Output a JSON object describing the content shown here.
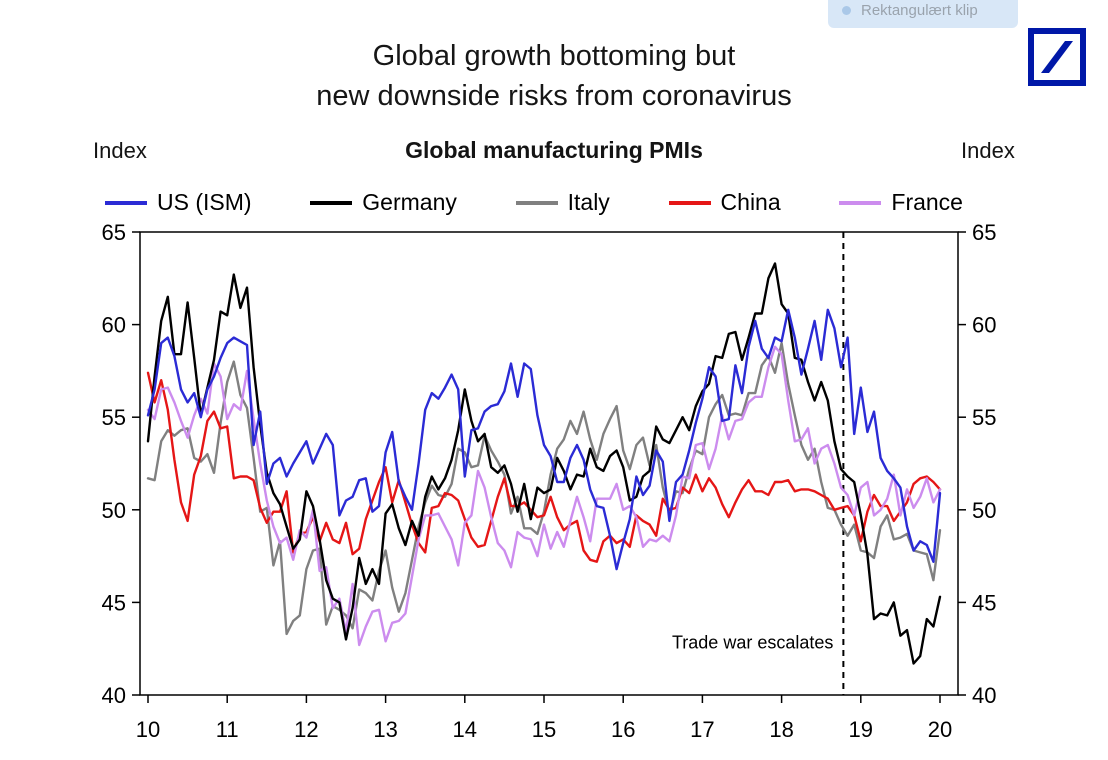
{
  "overlay": {
    "snip_label": "Rektangulært klip"
  },
  "logo": {
    "name": "deutsche-bank",
    "color": "#0018a8"
  },
  "title": {
    "line1": "Global growth bottoming but",
    "line2": "new downside risks from coronavirus"
  },
  "axis_units": {
    "left": "Index",
    "right": "Index"
  },
  "chart_data": {
    "type": "line",
    "title": "Global manufacturing PMIs",
    "xlabel": "",
    "ylabel": "Index",
    "start_year": 2010,
    "frequency": "monthly",
    "grid": false,
    "legend_position": "top",
    "xlim": [
      9.9,
      20.23
    ],
    "ylim": [
      40,
      65
    ],
    "xticks": [
      "10",
      "11",
      "12",
      "13",
      "14",
      "15",
      "16",
      "17",
      "18",
      "19",
      "20"
    ],
    "yticks": [
      40,
      45,
      50,
      55,
      60,
      65
    ],
    "series": [
      {
        "name": "US (ISM)",
        "color": "#2b2bd5",
        "values": [
          55.1,
          56.5,
          59.0,
          59.3,
          58.3,
          56.5,
          55.8,
          56.3,
          55.0,
          56.5,
          57.2,
          58.2,
          59.0,
          59.3,
          59.1,
          58.9,
          53.5,
          55.3,
          51.4,
          52.5,
          52.8,
          51.8,
          52.5,
          53.1,
          53.7,
          52.5,
          53.3,
          54.1,
          53.5,
          49.7,
          50.5,
          50.7,
          51.6,
          51.7,
          49.9,
          50.2,
          53.1,
          54.2,
          51.5,
          50.7,
          50.0,
          52.5,
          55.4,
          56.3,
          56.0,
          56.6,
          57.3,
          56.5,
          51.8,
          54.3,
          54.4,
          55.3,
          55.6,
          55.7,
          56.4,
          57.9,
          56.1,
          57.9,
          57.6,
          55.1,
          53.5,
          52.9,
          51.5,
          51.5,
          52.8,
          53.5,
          52.7,
          51.1,
          50.2,
          50.1,
          48.6,
          46.8,
          48.2,
          49.5,
          51.8,
          50.8,
          51.3,
          53.2,
          52.6,
          49.4,
          51.5,
          51.9,
          53.2,
          54.7,
          56.0,
          57.7,
          57.2,
          54.8,
          54.9,
          57.8,
          56.3,
          58.8,
          60.2,
          58.7,
          58.2,
          59.3,
          59.1,
          60.8,
          59.3,
          57.3,
          58.7,
          60.2,
          58.1,
          60.8,
          59.8,
          57.7,
          59.3,
          54.1,
          56.6,
          54.2,
          55.3,
          52.8,
          52.1,
          51.7,
          51.2,
          49.1,
          47.8,
          48.3,
          48.1,
          47.2,
          50.9
        ]
      },
      {
        "name": "Germany",
        "color": "#000000",
        "values": [
          53.7,
          57.2,
          60.2,
          61.5,
          58.4,
          58.4,
          61.2,
          58.2,
          55.1,
          56.6,
          58.1,
          60.7,
          60.5,
          62.7,
          60.9,
          62.0,
          57.7,
          54.6,
          52.0,
          50.9,
          50.3,
          49.1,
          47.9,
          48.4,
          51.0,
          50.2,
          48.4,
          46.2,
          45.2,
          45.0,
          43.0,
          44.7,
          47.4,
          46.0,
          46.8,
          46.0,
          49.8,
          50.3,
          49.0,
          48.1,
          49.4,
          48.6,
          50.7,
          51.8,
          51.1,
          51.7,
          52.7,
          54.3,
          56.5,
          54.8,
          53.7,
          54.1,
          52.3,
          52.0,
          52.4,
          51.4,
          49.9,
          51.4,
          49.5,
          51.2,
          50.9,
          51.1,
          52.8,
          52.1,
          51.1,
          51.9,
          51.8,
          53.3,
          52.3,
          52.1,
          52.9,
          53.2,
          52.3,
          50.5,
          50.7,
          51.8,
          52.1,
          54.5,
          53.8,
          53.6,
          54.3,
          55.0,
          54.3,
          55.6,
          56.4,
          56.8,
          58.3,
          58.2,
          59.5,
          59.6,
          58.1,
          59.3,
          60.6,
          60.6,
          62.5,
          63.3,
          61.1,
          60.6,
          58.2,
          58.1,
          56.9,
          55.9,
          56.9,
          55.9,
          53.7,
          52.2,
          51.8,
          51.5,
          49.7,
          47.6,
          44.1,
          44.4,
          44.3,
          45.0,
          43.2,
          43.5,
          41.7,
          42.1,
          44.1,
          43.7,
          45.3
        ]
      },
      {
        "name": "Italy",
        "color": "#808080",
        "values": [
          51.7,
          51.6,
          53.7,
          54.3,
          54.0,
          54.3,
          54.4,
          52.8,
          52.6,
          53.0,
          52.0,
          54.7,
          56.9,
          58.0,
          56.2,
          55.5,
          52.8,
          49.9,
          50.1,
          47.0,
          48.3,
          43.3,
          44.0,
          44.3,
          46.8,
          47.8,
          47.9,
          43.8,
          44.8,
          44.6,
          44.3,
          43.6,
          45.7,
          45.5,
          45.1,
          46.7,
          47.8,
          45.8,
          44.5,
          45.5,
          47.3,
          49.1,
          50.4,
          51.3,
          50.8,
          50.7,
          51.4,
          53.3,
          53.1,
          52.3,
          52.4,
          54.0,
          53.2,
          52.6,
          51.9,
          49.8,
          50.7,
          49.0,
          49.0,
          48.7,
          49.9,
          51.9,
          53.3,
          53.8,
          54.8,
          54.1,
          55.3,
          53.8,
          52.7,
          54.1,
          54.9,
          55.6,
          53.2,
          52.2,
          53.5,
          53.9,
          52.4,
          53.5,
          51.2,
          49.8,
          51.0,
          50.9,
          52.2,
          53.2,
          53.0,
          55.0,
          55.7,
          56.2,
          55.1,
          55.2,
          55.1,
          56.3,
          56.3,
          57.8,
          58.3,
          57.4,
          59.0,
          56.8,
          55.1,
          53.5,
          52.7,
          53.3,
          51.5,
          50.1,
          50.0,
          49.2,
          48.6,
          49.2,
          47.8,
          47.7,
          47.4,
          49.1,
          49.7,
          48.4,
          48.5,
          48.7,
          47.8,
          47.7,
          47.6,
          46.2,
          48.9
        ]
      },
      {
        "name": "China",
        "color": "#e51616",
        "values": [
          57.4,
          55.8,
          57.0,
          55.4,
          52.7,
          50.4,
          49.4,
          51.9,
          52.9,
          54.8,
          55.3,
          54.4,
          54.5,
          51.7,
          51.8,
          51.8,
          51.6,
          50.1,
          49.3,
          49.9,
          49.9,
          51.0,
          47.7,
          48.7,
          48.8,
          49.6,
          48.3,
          49.3,
          48.4,
          48.2,
          49.3,
          47.6,
          47.9,
          49.5,
          50.5,
          51.5,
          52.3,
          50.4,
          51.6,
          50.4,
          49.2,
          48.2,
          47.7,
          50.1,
          50.2,
          50.9,
          50.8,
          50.5,
          49.5,
          48.5,
          48.0,
          48.1,
          49.4,
          50.7,
          51.7,
          50.2,
          50.2,
          50.4,
          50.0,
          49.6,
          49.7,
          50.7,
          49.6,
          48.9,
          49.2,
          49.4,
          47.8,
          47.3,
          47.2,
          48.3,
          48.6,
          48.2,
          48.4,
          48.0,
          49.7,
          49.4,
          49.2,
          48.6,
          50.6,
          50.0,
          50.1,
          51.2,
          50.9,
          51.9,
          51.0,
          51.7,
          51.2,
          50.3,
          49.6,
          50.4,
          51.1,
          51.6,
          51.0,
          51.0,
          50.8,
          51.5,
          51.5,
          51.6,
          51.0,
          51.1,
          51.1,
          51.0,
          50.8,
          50.6,
          50.0,
          50.1,
          50.2,
          49.7,
          48.3,
          49.9,
          50.8,
          50.2,
          50.2,
          49.4,
          49.9,
          50.4,
          51.4,
          51.7,
          51.8,
          51.5,
          51.1
        ]
      },
      {
        "name": "France",
        "color": "#cc8cee",
        "values": [
          55.4,
          54.9,
          56.5,
          56.6,
          55.8,
          54.8,
          53.9,
          55.1,
          56.0,
          55.2,
          57.9,
          57.2,
          54.9,
          55.7,
          55.4,
          57.5,
          54.9,
          52.5,
          50.5,
          49.1,
          48.2,
          48.5,
          47.3,
          48.9,
          48.5,
          50.0,
          46.7,
          46.9,
          44.7,
          45.2,
          43.4,
          46.0,
          42.7,
          43.7,
          44.5,
          44.6,
          42.9,
          43.9,
          44.0,
          44.4,
          46.4,
          48.4,
          49.7,
          49.7,
          49.8,
          49.1,
          48.4,
          47.0,
          49.3,
          49.7,
          52.1,
          51.2,
          49.6,
          48.2,
          47.8,
          46.9,
          48.8,
          48.5,
          48.4,
          47.5,
          49.2,
          47.9,
          48.8,
          48.0,
          49.4,
          50.7,
          49.6,
          48.3,
          50.6,
          50.6,
          50.6,
          51.4,
          50.0,
          50.2,
          49.6,
          48.0,
          48.4,
          48.3,
          48.6,
          48.3,
          49.7,
          51.8,
          51.7,
          53.5,
          53.6,
          52.2,
          53.3,
          55.1,
          53.8,
          54.8,
          54.9,
          55.8,
          56.1,
          56.1,
          57.7,
          58.8,
          58.4,
          55.9,
          53.7,
          53.8,
          54.4,
          52.5,
          53.3,
          53.5,
          52.5,
          51.2,
          50.8,
          49.7,
          51.2,
          51.5,
          49.7,
          50.0,
          50.6,
          51.9,
          49.7,
          51.1,
          50.1,
          50.7,
          51.7,
          50.4,
          51.1
        ]
      }
    ],
    "annotations": [
      {
        "type": "vline",
        "x": 18.78,
        "line_style": "dashed",
        "label": "Trade war escalates",
        "label_y": 42.5
      }
    ]
  }
}
